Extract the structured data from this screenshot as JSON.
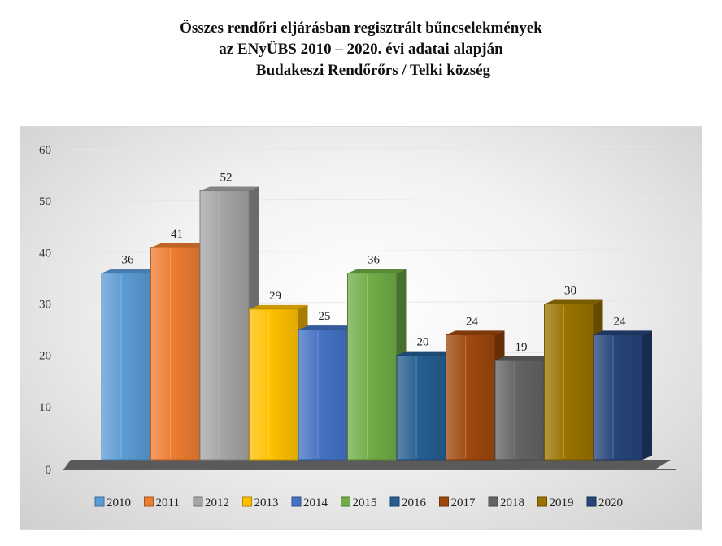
{
  "title_lines": [
    "Összes rendőri eljárásban regisztrált bűncselekmények",
    "az ENyÜBS 2010 – 2020. évi adatai alapján",
    "Budakeszi Rendőrőrs / Telki község"
  ],
  "chart_data": {
    "type": "bar",
    "title": "Összes rendőri eljárásban regisztrált bűncselekmények az ENyÜBS 2010 – 2020. évi adatai alapján Budakeszi Rendőrőrs / Telki község",
    "categories": [
      "2010",
      "2011",
      "2012",
      "2013",
      "2014",
      "2015",
      "2016",
      "2017",
      "2018",
      "2019",
      "2020"
    ],
    "values": [
      36,
      41,
      52,
      29,
      25,
      36,
      20,
      24,
      19,
      30,
      24
    ],
    "ylim": [
      0,
      60
    ],
    "yticks": [
      0,
      10,
      20,
      30,
      40,
      50,
      60
    ],
    "style": "3d-column",
    "legend_position": "bottom",
    "grid": true,
    "colors": [
      "#5b9bd5",
      "#ed7d31",
      "#a5a5a5",
      "#ffc000",
      "#4472c4",
      "#70ad47",
      "#255e91",
      "#9e480e",
      "#636363",
      "#997300",
      "#264478"
    ]
  }
}
